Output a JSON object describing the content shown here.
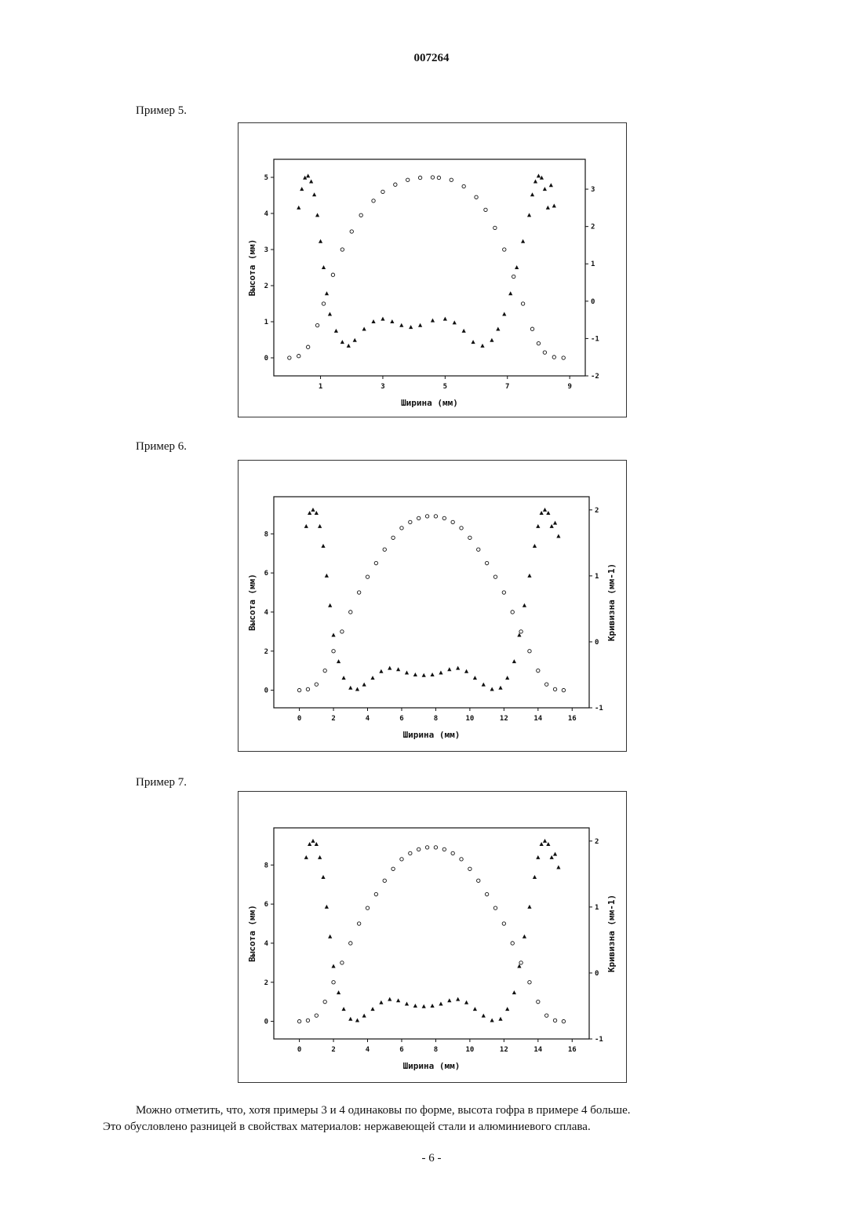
{
  "header": {
    "document_number": "007264"
  },
  "examples": [
    {
      "label": "Пример 5."
    },
    {
      "label": "Пример 6."
    },
    {
      "label": "Пример 7."
    }
  ],
  "body": {
    "paragraph_1": "Можно отметить, что, хотя примеры 3 и 4 одинаковы по форме, высота гофра в примере 4 больше.",
    "paragraph_2": "Это обусловлено разницей в свойствах материалов: нержавеющей стали и алюминиевого сплава."
  },
  "footer": {
    "page_number": "- 6 -"
  },
  "chart_data": [
    {
      "type": "scatter",
      "xlabel": "Ширина (мм)",
      "ylabel": "Высота (мм)",
      "y2label": "",
      "xlim": [
        -0.5,
        9.5
      ],
      "ylim": [
        -0.5,
        5.5
      ],
      "y2lim": [
        -2,
        3.8
      ],
      "xticks": [
        1,
        3,
        5,
        7,
        9
      ],
      "yticks": [
        0,
        1,
        2,
        3,
        4,
        5
      ],
      "y2ticks": [
        -2,
        -1,
        0,
        1,
        2,
        3
      ],
      "series": [
        {
          "marker": "circle",
          "axis": "left",
          "x": [
            0,
            0.3,
            0.6,
            0.9,
            1.1,
            1.4,
            1.7,
            2.0,
            2.3,
            2.7,
            3.0,
            3.4,
            3.8,
            4.2,
            4.6,
            4.8,
            5.2,
            5.6,
            6.0,
            6.3,
            6.6,
            6.9,
            7.2,
            7.5,
            7.8,
            8.0,
            8.2,
            8.5,
            8.8
          ],
          "y": [
            0.0,
            0.05,
            0.3,
            0.9,
            1.5,
            2.3,
            3.0,
            3.5,
            3.95,
            4.35,
            4.6,
            4.8,
            4.93,
            4.99,
            5.0,
            4.99,
            4.93,
            4.75,
            4.45,
            4.1,
            3.6,
            3.0,
            2.25,
            1.5,
            0.8,
            0.4,
            0.15,
            0.02,
            0.0
          ]
        },
        {
          "marker": "triangle",
          "axis": "right",
          "x": [
            0.3,
            0.4,
            0.5,
            0.6,
            0.7,
            0.8,
            0.9,
            1.0,
            1.1,
            1.2,
            1.3,
            1.5,
            1.7,
            1.9,
            2.1,
            2.4,
            2.7,
            3.0,
            3.3,
            3.6,
            3.9,
            4.2,
            4.6,
            5.0,
            5.3,
            5.6,
            5.9,
            6.2,
            6.5,
            6.7,
            6.9,
            7.1,
            7.3,
            7.5,
            7.7,
            7.8,
            7.9,
            8.0,
            8.1,
            8.2,
            8.3,
            8.4,
            8.5
          ],
          "y": [
            2.5,
            3.0,
            3.3,
            3.35,
            3.2,
            2.85,
            2.3,
            1.6,
            0.9,
            0.2,
            -0.35,
            -0.8,
            -1.1,
            -1.2,
            -1.05,
            -0.75,
            -0.55,
            -0.48,
            -0.55,
            -0.65,
            -0.7,
            -0.65,
            -0.52,
            -0.48,
            -0.58,
            -0.8,
            -1.1,
            -1.2,
            -1.05,
            -0.75,
            -0.35,
            0.2,
            0.9,
            1.6,
            2.3,
            2.85,
            3.2,
            3.35,
            3.3,
            3.0,
            2.5,
            3.1,
            2.55
          ]
        }
      ]
    },
    {
      "type": "scatter",
      "xlabel": "Ширина (мм)",
      "ylabel": "Высота (мм)",
      "y2label": "Кривизна (мм-1)",
      "xlim": [
        -1.5,
        17
      ],
      "ylim": [
        -0.9,
        9.9
      ],
      "y2lim": [
        -1,
        2.2
      ],
      "xticks": [
        0,
        2,
        4,
        6,
        8,
        10,
        12,
        14,
        16
      ],
      "yticks": [
        0,
        2,
        4,
        6,
        8
      ],
      "y2ticks": [
        -1,
        0,
        1,
        2
      ],
      "series": [
        {
          "marker": "circle",
          "axis": "left",
          "x": [
            0,
            0.5,
            1.0,
            1.5,
            2.0,
            2.5,
            3.0,
            3.5,
            4.0,
            4.5,
            5.0,
            5.5,
            6.0,
            6.5,
            7.0,
            7.5,
            8.0,
            8.5,
            9.0,
            9.5,
            10.0,
            10.5,
            11.0,
            11.5,
            12.0,
            12.5,
            13.0,
            13.5,
            14.0,
            14.5,
            15.0,
            15.5
          ],
          "y": [
            0.0,
            0.05,
            0.3,
            1.0,
            2.0,
            3.0,
            4.0,
            5.0,
            5.8,
            6.5,
            7.2,
            7.8,
            8.3,
            8.6,
            8.8,
            8.9,
            8.9,
            8.8,
            8.6,
            8.3,
            7.8,
            7.2,
            6.5,
            5.8,
            5.0,
            4.0,
            3.0,
            2.0,
            1.0,
            0.3,
            0.05,
            0.0
          ]
        },
        {
          "marker": "triangle",
          "axis": "right",
          "x": [
            0.4,
            0.6,
            0.8,
            1.0,
            1.2,
            1.4,
            1.6,
            1.8,
            2.0,
            2.3,
            2.6,
            3.0,
            3.4,
            3.8,
            4.3,
            4.8,
            5.3,
            5.8,
            6.3,
            6.8,
            7.3,
            7.8,
            8.3,
            8.8,
            9.3,
            9.8,
            10.3,
            10.8,
            11.3,
            11.8,
            12.2,
            12.6,
            12.9,
            13.2,
            13.5,
            13.8,
            14.0,
            14.2,
            14.4,
            14.6,
            14.8,
            15.0,
            15.2
          ],
          "y": [
            1.75,
            1.95,
            2.0,
            1.95,
            1.75,
            1.45,
            1.0,
            0.55,
            0.1,
            -0.3,
            -0.55,
            -0.7,
            -0.72,
            -0.65,
            -0.55,
            -0.45,
            -0.4,
            -0.42,
            -0.47,
            -0.5,
            -0.51,
            -0.5,
            -0.47,
            -0.42,
            -0.4,
            -0.45,
            -0.55,
            -0.65,
            -0.72,
            -0.7,
            -0.55,
            -0.3,
            0.1,
            0.55,
            1.0,
            1.45,
            1.75,
            1.95,
            2.0,
            1.95,
            1.75,
            1.8,
            1.6
          ]
        }
      ]
    },
    {
      "type": "scatter",
      "xlabel": "Ширина (мм)",
      "ylabel": "Высота (мм)",
      "y2label": "Кривизна (мм-1)",
      "xlim": [
        -1.5,
        17
      ],
      "ylim": [
        -0.9,
        9.9
      ],
      "y2lim": [
        -1,
        2.2
      ],
      "xticks": [
        0,
        2,
        4,
        6,
        8,
        10,
        12,
        14,
        16
      ],
      "yticks": [
        0,
        2,
        4,
        6,
        8
      ],
      "y2ticks": [
        -1,
        0,
        1,
        2
      ],
      "series": [
        {
          "marker": "circle",
          "axis": "left",
          "x": [
            0,
            0.5,
            1.0,
            1.5,
            2.0,
            2.5,
            3.0,
            3.5,
            4.0,
            4.5,
            5.0,
            5.5,
            6.0,
            6.5,
            7.0,
            7.5,
            8.0,
            8.5,
            9.0,
            9.5,
            10.0,
            10.5,
            11.0,
            11.5,
            12.0,
            12.5,
            13.0,
            13.5,
            14.0,
            14.5,
            15.0,
            15.5
          ],
          "y": [
            0.0,
            0.05,
            0.3,
            1.0,
            2.0,
            3.0,
            4.0,
            5.0,
            5.8,
            6.5,
            7.2,
            7.8,
            8.3,
            8.6,
            8.8,
            8.9,
            8.9,
            8.8,
            8.6,
            8.3,
            7.8,
            7.2,
            6.5,
            5.8,
            5.0,
            4.0,
            3.0,
            2.0,
            1.0,
            0.3,
            0.05,
            0.0
          ]
        },
        {
          "marker": "triangle",
          "axis": "right",
          "x": [
            0.4,
            0.6,
            0.8,
            1.0,
            1.2,
            1.4,
            1.6,
            1.8,
            2.0,
            2.3,
            2.6,
            3.0,
            3.4,
            3.8,
            4.3,
            4.8,
            5.3,
            5.8,
            6.3,
            6.8,
            7.3,
            7.8,
            8.3,
            8.8,
            9.3,
            9.8,
            10.3,
            10.8,
            11.3,
            11.8,
            12.2,
            12.6,
            12.9,
            13.2,
            13.5,
            13.8,
            14.0,
            14.2,
            14.4,
            14.6,
            14.8,
            15.0,
            15.2
          ],
          "y": [
            1.75,
            1.95,
            2.0,
            1.95,
            1.75,
            1.45,
            1.0,
            0.55,
            0.1,
            -0.3,
            -0.55,
            -0.7,
            -0.72,
            -0.65,
            -0.55,
            -0.45,
            -0.4,
            -0.42,
            -0.47,
            -0.5,
            -0.51,
            -0.5,
            -0.47,
            -0.42,
            -0.4,
            -0.45,
            -0.55,
            -0.65,
            -0.72,
            -0.7,
            -0.55,
            -0.3,
            0.1,
            0.55,
            1.0,
            1.45,
            1.75,
            1.95,
            2.0,
            1.95,
            1.75,
            1.8,
            1.6
          ]
        }
      ]
    }
  ]
}
